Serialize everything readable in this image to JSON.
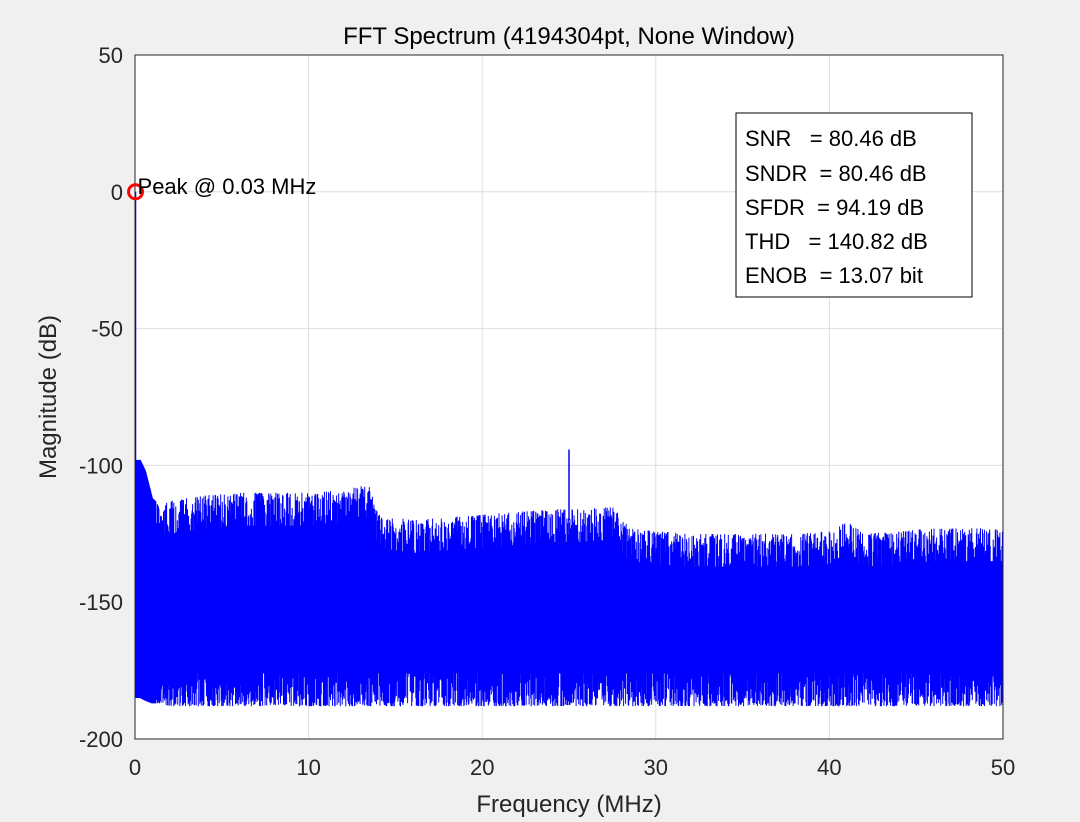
{
  "chart_data": {
    "type": "line",
    "title": "FFT Spectrum (4194304pt, None Window)",
    "xlabel": "Frequency (MHz)",
    "ylabel": "Magnitude (dB)",
    "xlim": [
      0,
      50
    ],
    "ylim": [
      -200,
      50
    ],
    "xticks": [
      "0",
      "10",
      "20",
      "30",
      "40",
      "50"
    ],
    "yticks": [
      "50",
      "0",
      "-50",
      "-100",
      "-150",
      "-200"
    ],
    "grid": true,
    "series": [
      {
        "color": "#0000ff",
        "envelope": {
          "x": [
            0,
            0.3,
            0.6,
            1,
            1.5,
            2,
            4,
            6,
            8,
            10,
            12,
            13.5,
            14,
            16,
            18,
            20,
            22,
            24,
            26,
            27.5,
            28.5,
            30,
            32,
            34,
            36,
            38,
            40,
            41,
            42,
            44,
            46,
            48,
            50
          ],
          "upper": [
            -98,
            -98,
            -102,
            -112,
            -115,
            -113,
            -111,
            -110,
            -110,
            -110,
            -109,
            -107,
            -118,
            -120,
            -119,
            -118,
            -117,
            -116,
            -116,
            -115,
            -123,
            -124,
            -125,
            -125,
            -125,
            -125,
            -124,
            -120,
            -125,
            -124,
            -123,
            -123,
            -123
          ],
          "lower": [
            -185,
            -185,
            -186,
            -187,
            -187,
            -188,
            -188,
            -188,
            -188,
            -188,
            -188,
            -188,
            -188,
            -188,
            -188,
            -188,
            -188,
            -188,
            -188,
            -188,
            -188,
            -188,
            -188,
            -188,
            -188,
            -188,
            -188,
            -188,
            -188,
            -188,
            -188,
            -188,
            -188
          ]
        },
        "peaks": [
          {
            "x": 0.03,
            "y": 0
          },
          {
            "x": 25,
            "y": -94.2
          }
        ]
      }
    ],
    "marker": {
      "x": 0.03,
      "y": 0,
      "color": "#ff0000",
      "label": "Peak @ 0.03 MHz"
    },
    "metrics": [
      "SNR   = 80.46 dB",
      "SNDR  = 80.46 dB",
      "SFDR  = 94.19 dB",
      "THD   = 140.82 dB",
      "ENOB  = 13.07 bit"
    ]
  }
}
